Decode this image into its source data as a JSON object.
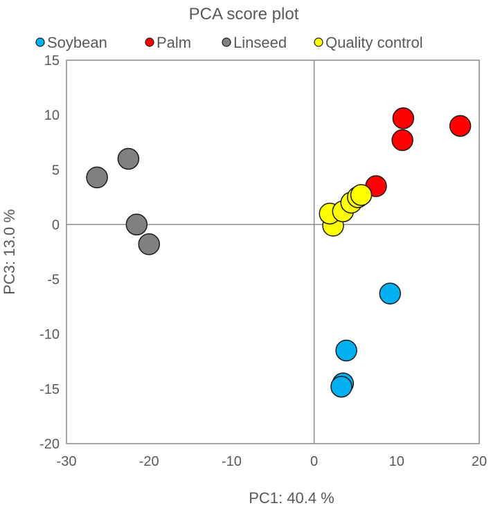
{
  "chart_data": {
    "type": "scatter",
    "title": "PCA score plot",
    "xlabel": "PC1: 40.4 %",
    "ylabel": "PC3: 13.0 %",
    "xlim": [
      -30,
      20
    ],
    "ylim": [
      -20,
      15
    ],
    "xticks": [
      -30,
      -20,
      -10,
      0,
      10,
      20
    ],
    "yticks": [
      15,
      10,
      5,
      0,
      -5,
      -10,
      -15,
      -20
    ],
    "grid": false,
    "zero_lines": true,
    "legend_position": "top",
    "series": [
      {
        "name": "Soybean",
        "color": "#00b0f0",
        "points": [
          [
            9.2,
            -6.3
          ],
          [
            3.9,
            -11.5
          ],
          [
            3.5,
            -14.5
          ],
          [
            3.3,
            -14.8
          ]
        ]
      },
      {
        "name": "Palm",
        "color": "#ff0000",
        "points": [
          [
            10.8,
            9.7
          ],
          [
            10.7,
            7.7
          ],
          [
            17.7,
            9.0
          ],
          [
            7.5,
            3.5
          ]
        ]
      },
      {
        "name": "Linseed",
        "color": "#808080",
        "points": [
          [
            -26.3,
            4.3
          ],
          [
            -22.5,
            6.0
          ],
          [
            -21.5,
            0.0
          ],
          [
            -20.0,
            -1.8
          ]
        ]
      },
      {
        "name": "Quality control",
        "color": "#ffff00",
        "points": [
          [
            2.3,
            -0.1
          ],
          [
            1.9,
            1.0
          ],
          [
            3.5,
            1.2
          ],
          [
            4.5,
            2.0
          ],
          [
            5.3,
            2.5
          ],
          [
            5.7,
            2.7
          ]
        ]
      }
    ]
  }
}
